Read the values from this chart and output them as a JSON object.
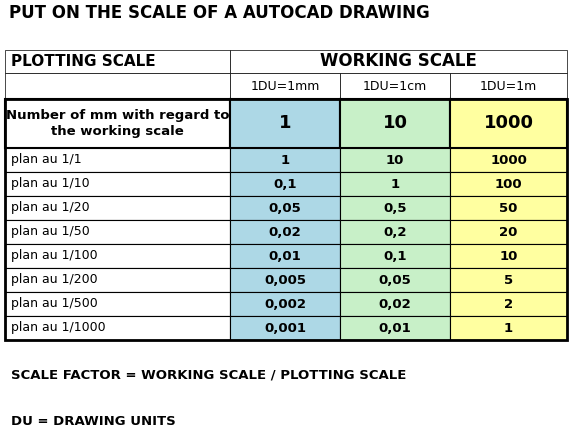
{
  "title": "PUT ON THE SCALE OF A AUTOCAD DRAWING",
  "plotting_scale_label": "PLOTTING SCALE",
  "working_scale_label": "WORKING SCALE",
  "col_headers": [
    "1DU=1mm",
    "1DU=1cm",
    "1DU=1m"
  ],
  "row_label_header_line1": "Number of mm with regard to",
  "row_label_header_line2": "the working scale",
  "row_header_values": [
    "1",
    "10",
    "1000"
  ],
  "rows": [
    {
      "label": "plan au 1/1",
      "values": [
        "1",
        "10",
        "1000"
      ]
    },
    {
      "label": "plan au 1/10",
      "values": [
        "0,1",
        "1",
        "100"
      ]
    },
    {
      "label": "plan au 1/20",
      "values": [
        "0,05",
        "0,5",
        "50"
      ]
    },
    {
      "label": "plan au 1/50",
      "values": [
        "0,02",
        "0,2",
        "20"
      ]
    },
    {
      "label": "plan au 1/100",
      "values": [
        "0,01",
        "0,1",
        "10"
      ]
    },
    {
      "label": "plan au 1/200",
      "values": [
        "0,005",
        "0,05",
        "5"
      ]
    },
    {
      "label": "plan au 1/500",
      "values": [
        "0,002",
        "0,02",
        "2"
      ]
    },
    {
      "label": "plan au 1/1000",
      "values": [
        "0,001",
        "0,01",
        "1"
      ]
    }
  ],
  "footer1": "SCALE FACTOR = WORKING SCALE / PLOTTING SCALE",
  "footer2": "DU = DRAWING UNITS",
  "color_blue": "#ADD8E6",
  "color_green": "#C8F0C8",
  "color_yellow": "#FFFFA0",
  "color_white": "#FFFFFF",
  "color_grid": "#C0C0C0",
  "color_border": "#000000",
  "title_fontsize": 12,
  "header_fontsize": 11,
  "subheader_fontsize": 9,
  "cell_fontsize": 9,
  "data_header_fontsize": 13,
  "footer_fontsize": 9
}
